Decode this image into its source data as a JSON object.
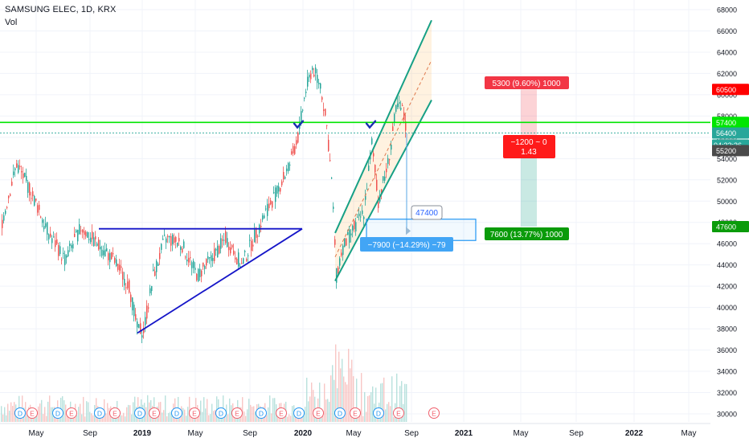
{
  "header": {
    "symbol_title": "SAMSUNG ELEC, 1D, KRX",
    "volume_label": "Vol"
  },
  "colors": {
    "up": "#26a69a",
    "down": "#ef5350",
    "green_line": "#00e600",
    "blue_line": "#1515c8",
    "channel": "#16a085",
    "price_red": "#ff0000",
    "price_green": "#0a9b0a",
    "price_teal": "#28a79a",
    "price_gray": "#4a4a4a",
    "measure_blue": "#2196f3"
  },
  "chart_data": {
    "type": "candlestick",
    "y_axis": {
      "min": 30000,
      "max": 68000,
      "step": 2000,
      "ticks": [
        "68000",
        "66000",
        "64000",
        "62000",
        "60000",
        "58000",
        "56000",
        "54000",
        "52000",
        "50000",
        "48000",
        "46000",
        "44000",
        "42000",
        "40000",
        "38000",
        "36000",
        "34000",
        "32000",
        "30000"
      ]
    },
    "x_axis": {
      "labels": [
        "May",
        "Sep",
        "2019",
        "May",
        "Sep",
        "2020",
        "May",
        "Sep",
        "2021",
        "May",
        "Sep",
        "2022",
        "May"
      ]
    },
    "price_path": [
      {
        "t": 0,
        "p": 47500
      },
      {
        "t": 20,
        "p": 53500
      },
      {
        "t": 40,
        "p": 50500
      },
      {
        "t": 60,
        "p": 47000
      },
      {
        "t": 80,
        "p": 44500
      },
      {
        "t": 100,
        "p": 47500
      },
      {
        "t": 120,
        "p": 46000
      },
      {
        "t": 140,
        "p": 44500
      },
      {
        "t": 160,
        "p": 42000
      },
      {
        "t": 170,
        "p": 38000
      },
      {
        "t": 178,
        "p": 37800
      },
      {
        "t": 190,
        "p": 43000
      },
      {
        "t": 205,
        "p": 46500
      },
      {
        "t": 225,
        "p": 46000
      },
      {
        "t": 245,
        "p": 43000
      },
      {
        "t": 262,
        "p": 44500
      },
      {
        "t": 280,
        "p": 46500
      },
      {
        "t": 300,
        "p": 44000
      },
      {
        "t": 318,
        "p": 47000
      },
      {
        "t": 330,
        "p": 49000
      },
      {
        "t": 345,
        "p": 51000
      },
      {
        "t": 360,
        "p": 53500
      },
      {
        "t": 370,
        "p": 56000
      },
      {
        "t": 380,
        "p": 60500
      },
      {
        "t": 388,
        "p": 62500
      },
      {
        "t": 398,
        "p": 61000
      },
      {
        "t": 406,
        "p": 57000
      },
      {
        "t": 412,
        "p": 52000
      },
      {
        "t": 418,
        "p": 43000
      },
      {
        "t": 425,
        "p": 45500
      },
      {
        "t": 440,
        "p": 47500
      },
      {
        "t": 452,
        "p": 49000
      },
      {
        "t": 462,
        "p": 55500
      },
      {
        "t": 470,
        "p": 50000
      },
      {
        "t": 482,
        "p": 53500
      },
      {
        "t": 493,
        "p": 59000
      },
      {
        "t": 500,
        "p": 58500
      },
      {
        "t": 506,
        "p": 56400
      }
    ],
    "horizontal_line": 57400,
    "triangle": {
      "upper_y": 47400,
      "lower_from": 37600,
      "lower_to": 47400
    },
    "channel_top_y": [
      47000,
      67000
    ],
    "channel_bottom_y": [
      42500,
      59500
    ],
    "checkmarks": [
      57000,
      57000
    ],
    "position": {
      "entry": 55200,
      "stop": 60500,
      "target": 47600,
      "risk_label": "5300 (9.60%) 1000",
      "reward_label": "7600 (13.77%) 1000",
      "center_line1": "−1200 ~ 0",
      "center_line2": "1.43"
    },
    "measure": {
      "label": "−7900 (−14.29%) −79",
      "target_label": "47400"
    },
    "price_tags": {
      "stop": "60500",
      "horizontal": "57400",
      "current": "56400",
      "countdown": "04:32:36",
      "entry": "55200",
      "target": "47600"
    },
    "events": [
      {
        "t": 25,
        "k": "D"
      },
      {
        "t": 40,
        "k": "E"
      },
      {
        "t": 72,
        "k": "D"
      },
      {
        "t": 89,
        "k": "E"
      },
      {
        "t": 124,
        "k": "D"
      },
      {
        "t": 143,
        "k": "E"
      },
      {
        "t": 174,
        "k": "D"
      },
      {
        "t": 192,
        "k": "E"
      },
      {
        "t": 220,
        "k": "D"
      },
      {
        "t": 242,
        "k": "E"
      },
      {
        "t": 275,
        "k": "D"
      },
      {
        "t": 295,
        "k": "E"
      },
      {
        "t": 325,
        "k": "D"
      },
      {
        "t": 350,
        "k": "E"
      },
      {
        "t": 372,
        "k": "D"
      },
      {
        "t": 396,
        "k": "E"
      },
      {
        "t": 423,
        "k": "D"
      },
      {
        "t": 442,
        "k": "E"
      },
      {
        "t": 471,
        "k": "D"
      },
      {
        "t": 496,
        "k": "E"
      },
      {
        "t": 540,
        "k": "E"
      }
    ]
  }
}
